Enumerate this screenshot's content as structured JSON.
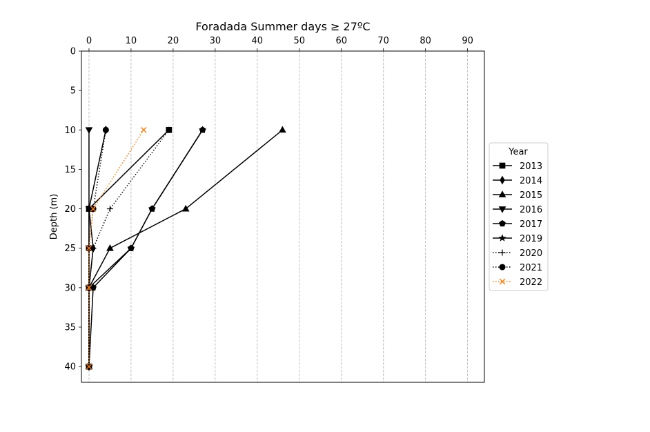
{
  "chart_data": {
    "type": "line",
    "title": "Foradada Summer days ≥ 27ºC",
    "xlabel": "",
    "ylabel": "Depth (m)",
    "xlim": [
      -1.8,
      94
    ],
    "ylim": [
      42,
      0
    ],
    "x_axis_position": "top",
    "y_axis_inverted": true,
    "x_ticks": [
      0,
      10,
      20,
      30,
      40,
      50,
      60,
      70,
      80,
      90
    ],
    "y_ticks": [
      0,
      5,
      10,
      15,
      20,
      25,
      30,
      35,
      40
    ],
    "grid": "vertical dashed",
    "legend": {
      "title": "Year",
      "placement": "outside right"
    },
    "series": [
      {
        "name": "2013",
        "marker": "square",
        "line": "solid",
        "color": "#000000",
        "points": [
          [
            19,
            10
          ],
          [
            0,
            20
          ],
          [
            0,
            25
          ],
          [
            0,
            30
          ],
          [
            0,
            40
          ]
        ]
      },
      {
        "name": "2014",
        "marker": "diamond",
        "line": "solid",
        "color": "#000000",
        "points": [
          [
            4,
            10
          ],
          [
            0,
            20
          ],
          [
            1,
            25
          ],
          [
            0,
            30
          ],
          [
            0,
            40
          ]
        ]
      },
      {
        "name": "2015",
        "marker": "triangle-up",
        "line": "solid",
        "color": "#000000",
        "points": [
          [
            46,
            10
          ],
          [
            23,
            20
          ],
          [
            5,
            25
          ],
          [
            0,
            30
          ],
          [
            0,
            40
          ]
        ]
      },
      {
        "name": "2016",
        "marker": "triangle-down",
        "line": "solid",
        "color": "#000000",
        "points": [
          [
            0,
            10
          ],
          [
            0,
            20
          ],
          [
            0,
            25
          ],
          [
            0,
            30
          ],
          [
            0,
            40
          ]
        ]
      },
      {
        "name": "2017",
        "marker": "pentagon",
        "line": "solid",
        "color": "#000000",
        "points": [
          [
            27,
            10
          ],
          [
            15,
            20
          ],
          [
            10,
            25
          ],
          [
            1,
            30
          ],
          [
            0,
            40
          ]
        ]
      },
      {
        "name": "2019",
        "marker": "star",
        "line": "solid",
        "color": "#000000",
        "points": [
          [
            27,
            10
          ],
          [
            15,
            20
          ],
          [
            10,
            25
          ],
          [
            0,
            30
          ],
          [
            0,
            40
          ]
        ]
      },
      {
        "name": "2020",
        "marker": "plus",
        "line": "dotted",
        "color": "#000000",
        "points": [
          [
            19,
            10
          ],
          [
            5,
            20
          ],
          [
            1,
            25
          ],
          [
            0,
            30
          ],
          [
            0,
            40
          ]
        ]
      },
      {
        "name": "2021",
        "marker": "circle",
        "line": "dotted",
        "color": "#000000",
        "points": [
          [
            4,
            10
          ],
          [
            1,
            20
          ],
          [
            0,
            25
          ],
          [
            0,
            30
          ],
          [
            0,
            40
          ]
        ]
      },
      {
        "name": "2022",
        "marker": "x",
        "line": "dotted",
        "color": "#ff7f0e",
        "points": [
          [
            13,
            10
          ],
          [
            1,
            20
          ],
          [
            0,
            25
          ],
          [
            0,
            30
          ],
          [
            0,
            40
          ]
        ]
      }
    ]
  }
}
